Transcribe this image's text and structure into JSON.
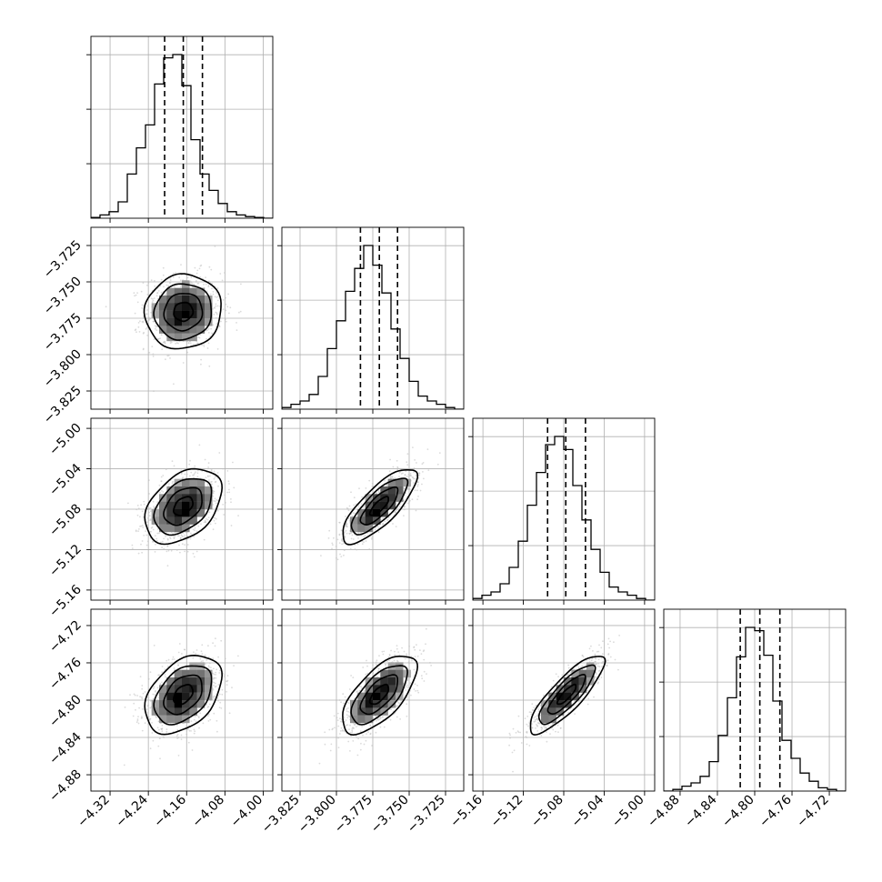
{
  "chart_data": {
    "type": "corner",
    "parameter_count": 4,
    "grid": true,
    "colors": {
      "hist": "#000000",
      "scatter": "#bdbdbd",
      "contour": "#000000",
      "quantile_line": "#000000"
    },
    "axes": [
      {
        "range": [
          -4.36,
          -3.98
        ],
        "ticks": [
          "-4.32",
          "-4.24",
          "-4.16",
          "-4.08",
          "-4.00"
        ],
        "tick_values": [
          -4.32,
          -4.24,
          -4.16,
          -4.08,
          -4.0
        ],
        "quantiles": [
          -4.206,
          -4.167,
          -4.127
        ],
        "mean": -4.167,
        "sd": 0.04
      },
      {
        "range": [
          -3.8375,
          -3.7125
        ],
        "ticks": [
          "-3.825",
          "-3.800",
          "-3.775",
          "-3.750",
          "-3.725"
        ],
        "tick_values": [
          -3.825,
          -3.8,
          -3.775,
          -3.75,
          -3.725
        ],
        "quantiles": [
          -3.7835,
          -3.7705,
          -3.758
        ],
        "mean": -3.7705,
        "sd": 0.0128
      },
      {
        "range": [
          -5.17,
          -4.99
        ],
        "ticks": [
          "-5.16",
          "-5.12",
          "-5.08",
          "-5.04",
          "-5.00"
        ],
        "tick_values": [
          -5.16,
          -5.12,
          -5.08,
          -5.04,
          -5.0
        ],
        "quantiles": [
          -5.096,
          -5.078,
          -5.0585
        ],
        "mean": -5.077,
        "sd": 0.0185
      },
      {
        "range": [
          -4.8975,
          -4.7025
        ],
        "ticks": [
          "-4.88",
          "-4.84",
          "-4.80",
          "-4.76",
          "-4.72"
        ],
        "tick_values": [
          -4.88,
          -4.84,
          -4.8,
          -4.76,
          -4.72
        ],
        "quantiles": [
          -4.8155,
          -4.7945,
          -4.773
        ],
        "mean": -4.794,
        "sd": 0.021
      }
    ],
    "histograms": [
      {
        "counts": [
          0.5,
          2,
          4,
          10,
          27,
          43,
          57,
          82,
          98,
          100,
          81,
          48,
          27,
          17,
          9,
          4,
          2,
          1,
          0.5,
          0
        ]
      },
      {
        "counts": [
          1,
          3,
          5,
          9,
          20,
          37,
          54,
          72,
          86,
          100,
          88,
          71,
          49,
          31,
          17,
          8,
          5,
          3,
          1,
          0
        ]
      },
      {
        "counts": [
          1,
          3,
          5,
          10,
          20,
          36,
          58,
          78,
          95,
          100,
          92,
          70,
          49,
          31,
          17,
          8,
          5,
          3,
          1,
          0
        ]
      },
      {
        "counts": [
          0,
          1,
          3,
          5,
          9,
          18,
          34,
          57,
          82,
          100,
          98,
          83,
          55,
          31,
          20,
          11,
          6,
          2,
          1,
          0
        ]
      }
    ],
    "correlations": [
      {
        "pair": [
          0,
          1
        ],
        "rho": 0.05
      },
      {
        "pair": [
          0,
          2
        ],
        "rho": 0.4
      },
      {
        "pair": [
          1,
          2
        ],
        "rho": 0.78
      },
      {
        "pair": [
          0,
          3
        ],
        "rho": 0.4
      },
      {
        "pair": [
          1,
          3
        ],
        "rho": 0.66
      },
      {
        "pair": [
          2,
          3
        ],
        "rho": 0.84
      }
    ],
    "xlabels": [
      "",
      "",
      "",
      ""
    ],
    "ylabels": [
      "",
      "",
      "",
      ""
    ],
    "title": ""
  }
}
